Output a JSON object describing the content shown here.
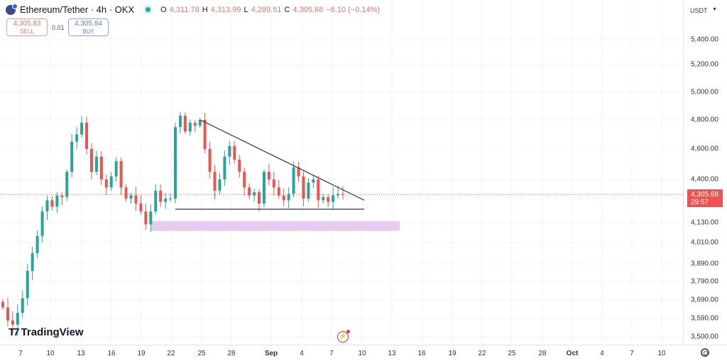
{
  "header": {
    "title": "Ethereum/Tether · 4h · OKX",
    "open_label": "O",
    "open": "4,311.78",
    "high_label": "H",
    "high": "4,313.99",
    "low_label": "L",
    "low": "4,289.51",
    "close_label": "C",
    "close": "4,305.68",
    "change": "−6.10 (−0.14%)"
  },
  "trade": {
    "sell_price": "4,305.83",
    "sell_label": "SELL",
    "spread": "0.01",
    "buy_price": "4,305.84",
    "buy_label": "BUY"
  },
  "currency": "USDT",
  "current_price": {
    "price": "4,305.68",
    "countdown": "29:57",
    "value": 4305.68
  },
  "brand": "TradingView",
  "colors": {
    "up": "#26a69a",
    "down": "#ef5350",
    "zone": "#e4cdf0",
    "trendline": "#333333"
  },
  "chart_data": {
    "type": "candlestick",
    "interval": "12h (approx.)",
    "closes": [
      3650,
      3580,
      3560,
      3620,
      3700,
      3850,
      3950,
      4050,
      4200,
      4270,
      4230,
      4300,
      4290,
      4450,
      4650,
      4700,
      4780,
      4600,
      4450,
      4550,
      4400,
      4350,
      4420,
      4520,
      4350,
      4280,
      4300,
      4250,
      4200,
      4120,
      4200,
      4330,
      4260,
      4280,
      4280,
      4750,
      4830,
      4720,
      4780,
      4760,
      4800,
      4600,
      4450,
      4330,
      4400,
      4550,
      4620,
      4530,
      4450,
      4350,
      4300,
      4320,
      4250,
      4450,
      4400,
      4350,
      4300,
      4270,
      4310,
      4480,
      4420,
      4280,
      4380,
      4400,
      4270,
      4290,
      4260,
      4300,
      4310,
      4305.68
    ],
    "y_ticks": [
      "5,400.00",
      "5,200.00",
      "5,000.00",
      "4,800.00",
      "4,600.00",
      "4,400.00",
      "4,130.00",
      "4,010.00",
      "3,890.00",
      "3,790.00",
      "3,690.00",
      "3,590.00",
      "3,500.00"
    ],
    "x_ticks": [
      "7",
      "10",
      "13",
      "16",
      "19",
      "22",
      "25",
      "28",
      "Sep",
      "4",
      "7",
      "10",
      "13",
      "16",
      "19",
      "22",
      "25",
      "28",
      "Oct",
      "4",
      "7",
      "10"
    ],
    "drawings": {
      "descending_trendline": [
        4800,
        4310
      ],
      "support_line": 4190,
      "demand_zone": [
        4080,
        4140
      ]
    }
  }
}
